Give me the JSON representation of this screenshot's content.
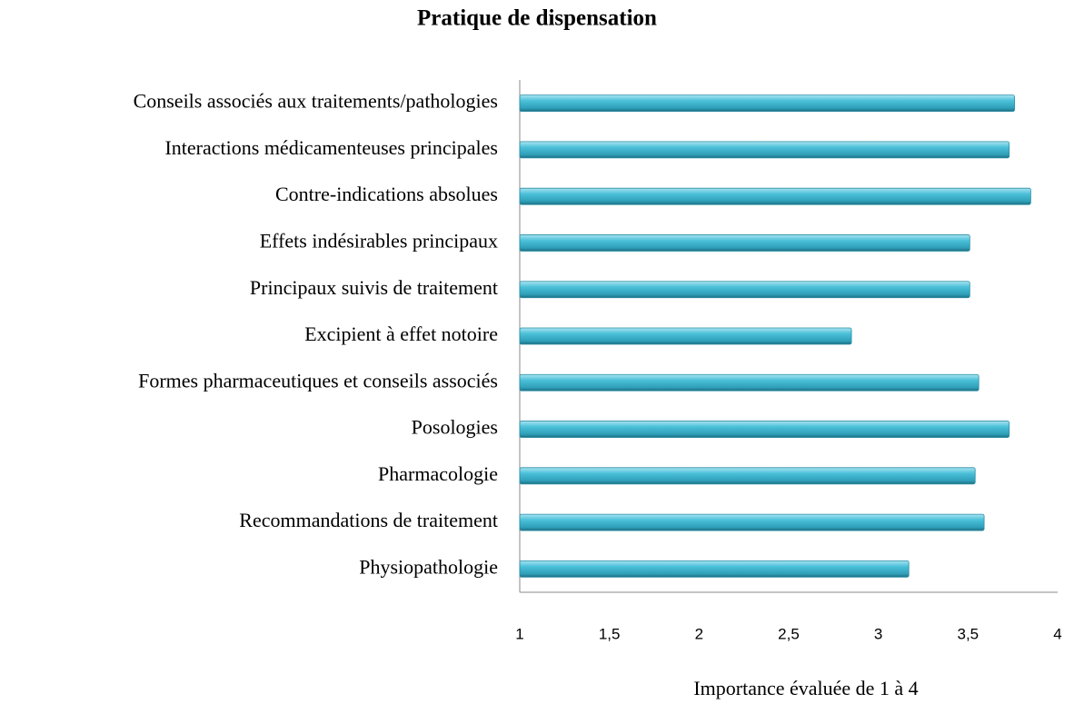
{
  "chart_data": {
    "type": "bar",
    "orientation": "horizontal",
    "title": "Pratique de dispensation",
    "x_label": "Importance évaluée de 1 à 4",
    "categories": [
      "Conseils associés aux traitements/pathologies",
      "Interactions médicamenteuses principales",
      "Contre-indications absolues",
      "Effets indésirables principaux",
      "Principaux suivis de traitement",
      "Excipient à effet notoire",
      "Formes pharmaceutiques et conseils associés",
      "Posologies",
      "Pharmacologie",
      "Recommandations de traitement",
      "Physiopathologie"
    ],
    "values": [
      3.76,
      3.73,
      3.85,
      3.51,
      3.51,
      2.85,
      3.56,
      3.73,
      3.54,
      3.59,
      3.17
    ],
    "color": "#4bc0d9",
    "xlim": [
      1,
      4
    ],
    "xticks": [
      1,
      {
        "value": 1.5,
        "label": "1,5"
      },
      2,
      {
        "value": 2.5,
        "label": "2,5"
      },
      3,
      {
        "value": 3.5,
        "label": "3,5"
      },
      4
    ],
    "grid": false
  }
}
